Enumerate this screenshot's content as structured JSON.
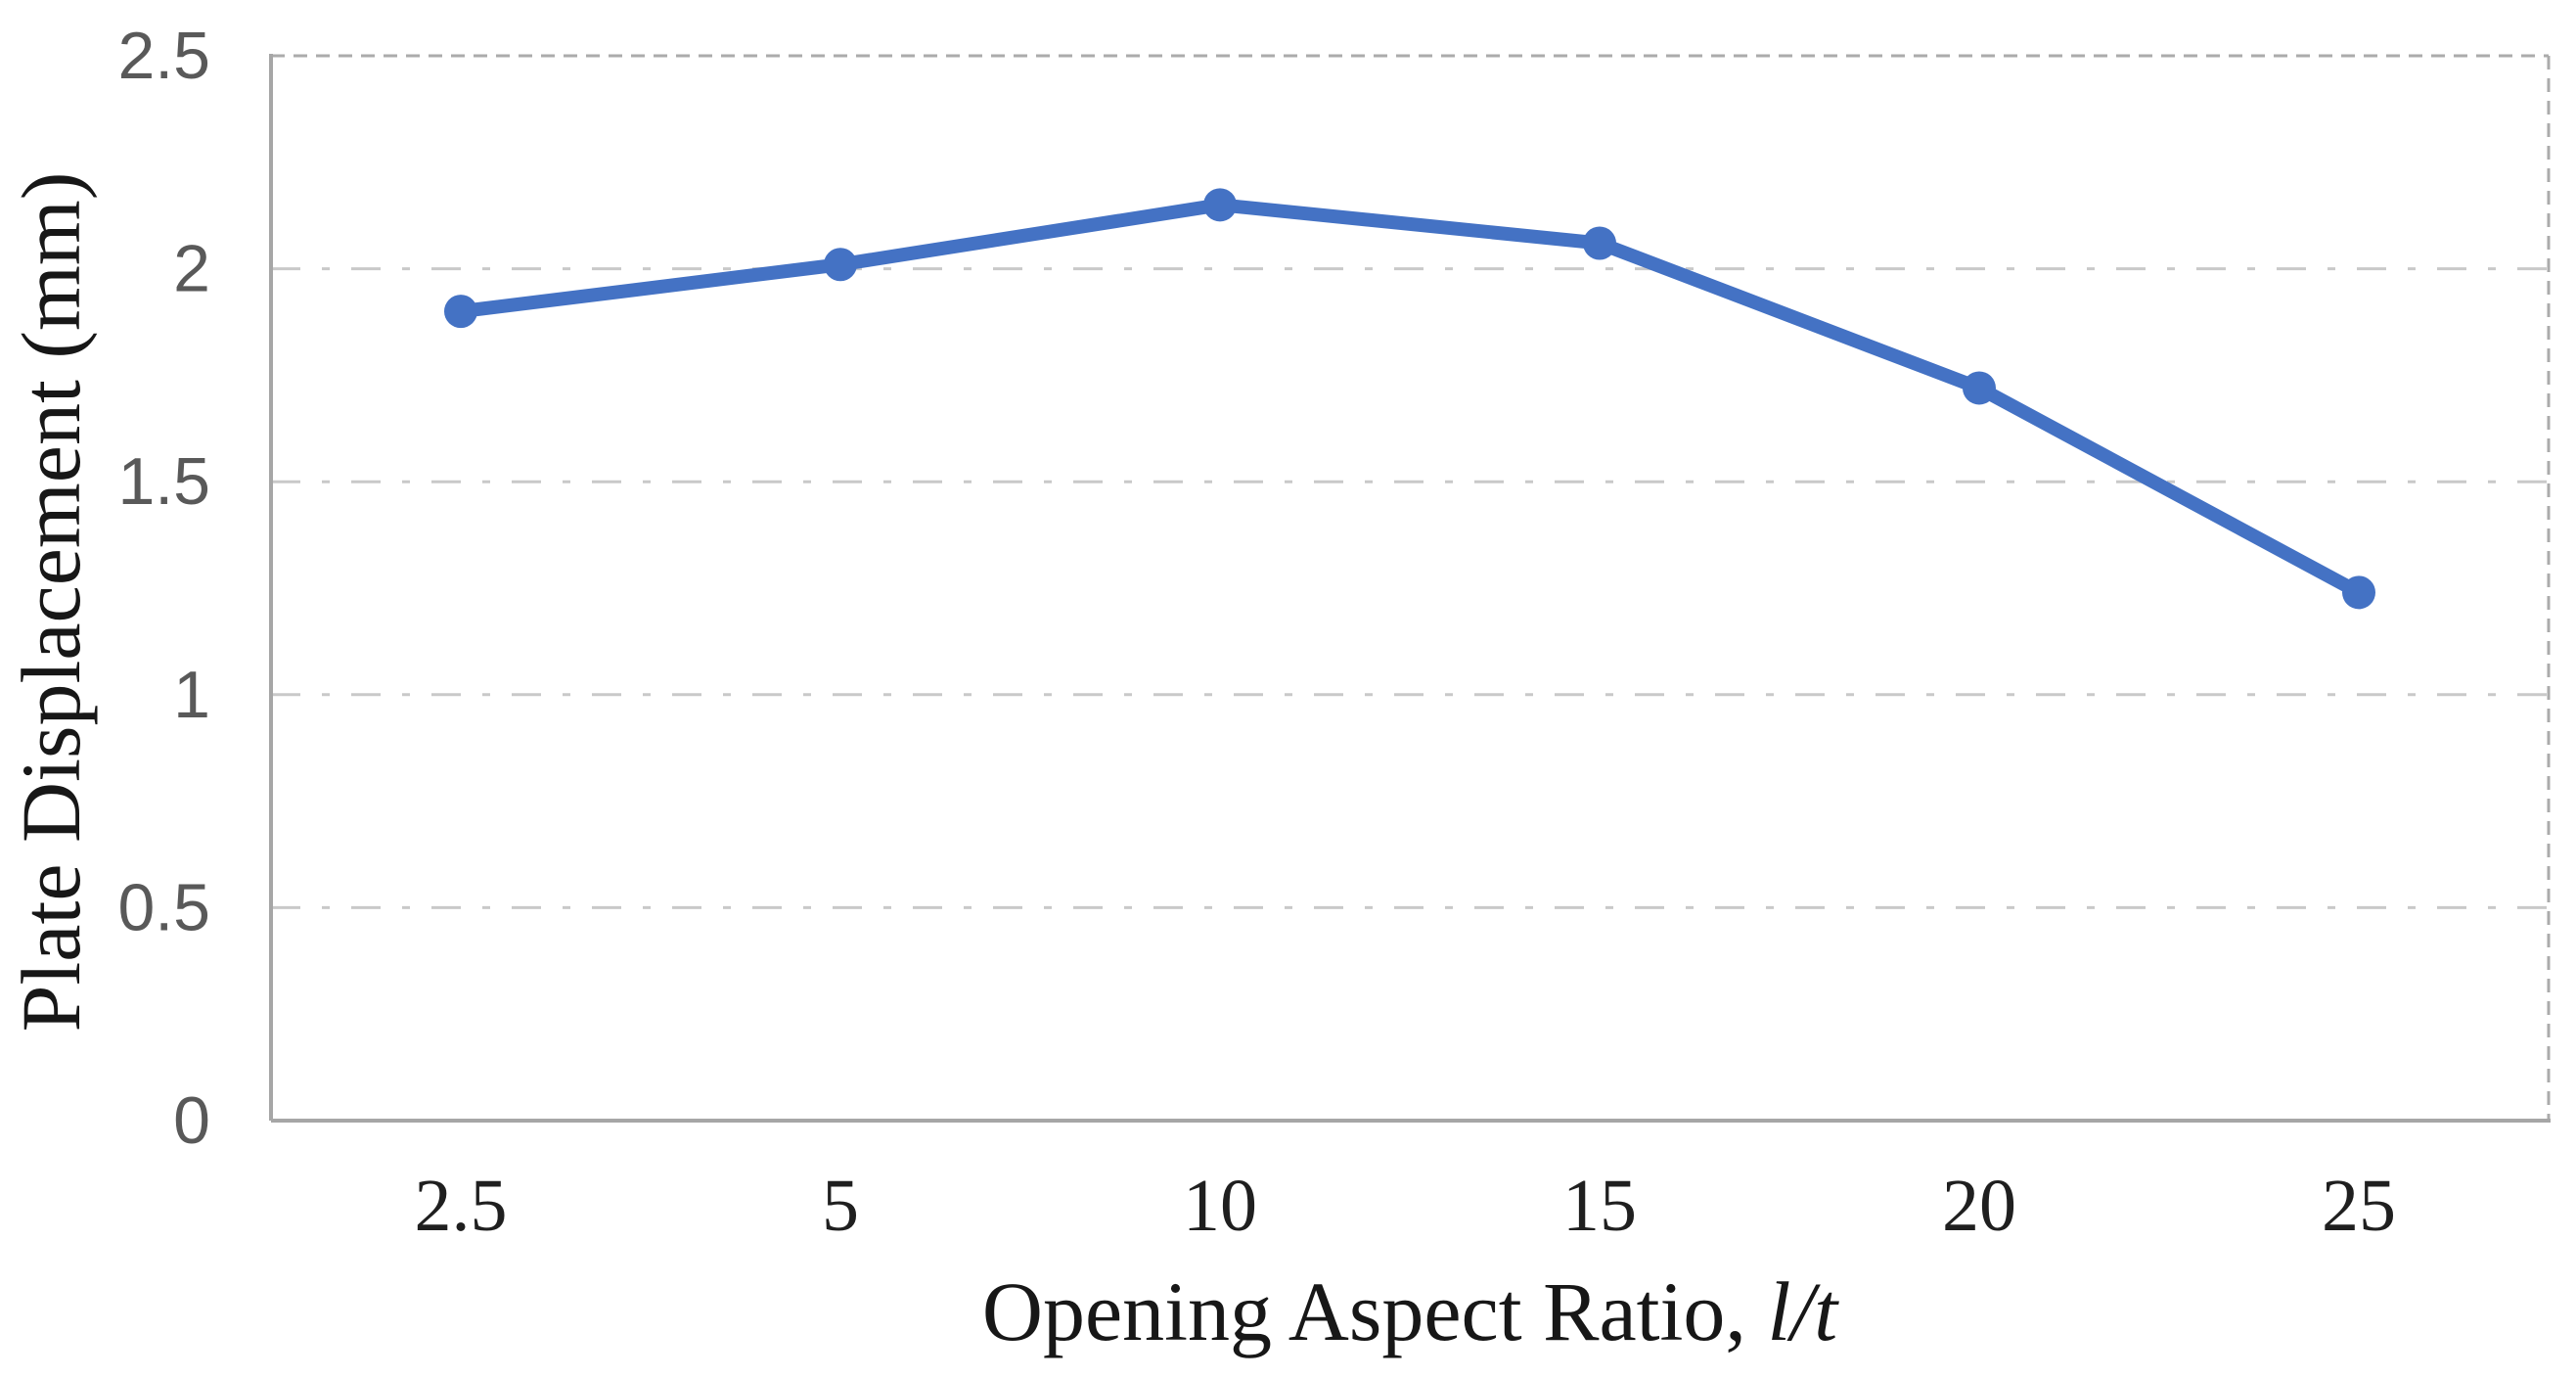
{
  "chart_data": {
    "type": "line",
    "title": "",
    "categories": [
      "2.5",
      "5",
      "10",
      "15",
      "20",
      "25"
    ],
    "values": [
      1.9,
      2.01,
      2.15,
      2.06,
      1.72,
      1.24
    ],
    "xlabel": "Opening Aspect Ratio, l/t",
    "xlabel_main": "Opening Aspect Ratio, ",
    "xlabel_italic": "l/t",
    "ylabel": "Plate Displacement (mm)",
    "ylim": [
      0,
      2.5
    ],
    "ytick_step": 0.5,
    "ytick_labels": [
      "0",
      "0.5",
      "1",
      "1.5",
      "2",
      "2.5"
    ],
    "grid": "horizontal dash-dot gridlines at 0.5 intervals, dashed top and right plot border",
    "legend": "none",
    "marker": "filled circle",
    "colors": {
      "series": "#4472C4",
      "gridline": "#C9C9C9",
      "plot_border": "#ABABAB",
      "axis_line": "#A6A6A6",
      "ytick_text": "#595959",
      "xtick_text": "#1F1F1F"
    }
  }
}
